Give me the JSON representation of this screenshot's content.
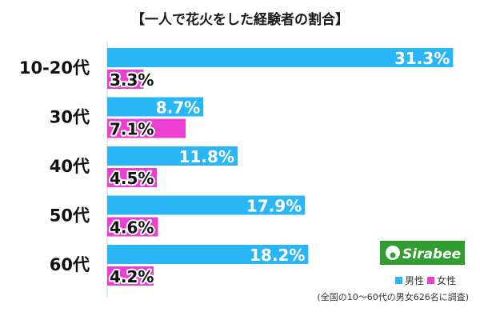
{
  "chart_data": {
    "type": "bar",
    "title": "【一人で花火をした経験者の割合】",
    "categories": [
      "10-20代",
      "30代",
      "40代",
      "50代",
      "60代"
    ],
    "series": [
      {
        "name": "男性",
        "color": "#29b6f6",
        "values": [
          31.3,
          8.7,
          11.8,
          17.9,
          18.2
        ]
      },
      {
        "name": "女性",
        "color": "#ec3fd2",
        "values": [
          3.3,
          7.1,
          4.5,
          4.6,
          4.2
        ]
      }
    ],
    "value_suffix": "%",
    "orientation": "horizontal",
    "xlim": [
      0,
      32
    ],
    "grid": false,
    "legend": "bottom-right"
  },
  "brand": {
    "logo_text": "Sirabee",
    "logo_color": "#2f9e2f"
  },
  "note": "(全国の10～60代の男女626名に調査)"
}
